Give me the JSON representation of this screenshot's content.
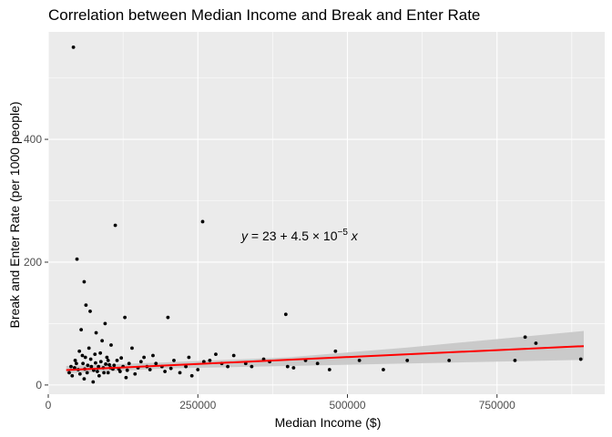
{
  "chart_data": {
    "type": "scatter",
    "title": "Correlation between Median Income and Break and Enter Rate",
    "xlabel": "Median Income ($)",
    "ylabel": "Break and Enter Rate (per 1000 people)",
    "xlim": [
      0,
      930000
    ],
    "ylim": [
      -15,
      575
    ],
    "x_ticks": [
      0,
      250000,
      500000,
      750000
    ],
    "x_tick_labels": [
      "0",
      "250000",
      "500000",
      "750000"
    ],
    "y_ticks": [
      0,
      200,
      400
    ],
    "y_tick_labels": [
      "0",
      "200",
      "400"
    ],
    "grid": true,
    "points": [
      [
        42000,
        550
      ],
      [
        112000,
        260
      ],
      [
        258000,
        266
      ],
      [
        48000,
        205
      ],
      [
        60000,
        168
      ],
      [
        397000,
        115
      ],
      [
        200000,
        110
      ],
      [
        128000,
        110
      ],
      [
        63000,
        130
      ],
      [
        70000,
        120
      ],
      [
        95000,
        100
      ],
      [
        80000,
        85
      ],
      [
        90000,
        72
      ],
      [
        55000,
        90
      ],
      [
        105000,
        65
      ],
      [
        140000,
        60
      ],
      [
        160000,
        45
      ],
      [
        175000,
        48
      ],
      [
        210000,
        40
      ],
      [
        235000,
        45
      ],
      [
        260000,
        38
      ],
      [
        280000,
        50
      ],
      [
        310000,
        48
      ],
      [
        360000,
        42
      ],
      [
        400000,
        30
      ],
      [
        410000,
        28
      ],
      [
        470000,
        25
      ],
      [
        480000,
        55
      ],
      [
        520000,
        40
      ],
      [
        560000,
        25
      ],
      [
        600000,
        40
      ],
      [
        670000,
        40
      ],
      [
        780000,
        40
      ],
      [
        797000,
        78
      ],
      [
        815000,
        68
      ],
      [
        890000,
        42
      ],
      [
        60000,
        10
      ],
      [
        75000,
        5
      ],
      [
        85000,
        15
      ],
      [
        100000,
        20
      ],
      [
        120000,
        22
      ],
      [
        130000,
        12
      ],
      [
        145000,
        18
      ],
      [
        170000,
        25
      ],
      [
        190000,
        30
      ],
      [
        220000,
        20
      ],
      [
        240000,
        15
      ],
      [
        300000,
        30
      ],
      [
        330000,
        35
      ],
      [
        35000,
        20
      ],
      [
        38000,
        30
      ],
      [
        45000,
        40
      ],
      [
        50000,
        25
      ],
      [
        52000,
        55
      ],
      [
        58000,
        35
      ],
      [
        62000,
        45
      ],
      [
        65000,
        20
      ],
      [
        68000,
        60
      ],
      [
        72000,
        30
      ],
      [
        78000,
        50
      ],
      [
        82000,
        22
      ],
      [
        88000,
        38
      ],
      [
        92000,
        28
      ],
      [
        98000,
        45
      ],
      [
        102000,
        33
      ],
      [
        108000,
        26
      ],
      [
        115000,
        40
      ],
      [
        125000,
        30
      ],
      [
        135000,
        35
      ],
      [
        150000,
        28
      ],
      [
        155000,
        38
      ],
      [
        165000,
        30
      ],
      [
        180000,
        35
      ],
      [
        195000,
        22
      ],
      [
        205000,
        27
      ],
      [
        230000,
        30
      ],
      [
        250000,
        25
      ],
      [
        270000,
        40
      ],
      [
        290000,
        35
      ],
      [
        340000,
        30
      ],
      [
        370000,
        38
      ],
      [
        430000,
        40
      ],
      [
        450000,
        35
      ],
      [
        40000,
        15
      ],
      [
        44000,
        28
      ],
      [
        47000,
        35
      ],
      [
        53000,
        18
      ],
      [
        57000,
        48
      ],
      [
        61000,
        26
      ],
      [
        66000,
        32
      ],
      [
        71000,
        42
      ],
      [
        76000,
        24
      ],
      [
        79000,
        36
      ],
      [
        84000,
        30
      ],
      [
        87000,
        52
      ],
      [
        93000,
        20
      ],
      [
        96000,
        34
      ],
      [
        100000,
        40
      ],
      [
        104000,
        28
      ],
      [
        110000,
        32
      ],
      [
        118000,
        26
      ],
      [
        122000,
        44
      ],
      [
        132000,
        24
      ]
    ],
    "regression": {
      "intercept": 23,
      "slope": 4.5e-05,
      "x_range": [
        30000,
        895000
      ],
      "ci_low": [
        [
          30000,
          19
        ],
        [
          200000,
          27
        ],
        [
          400000,
          31
        ],
        [
          600000,
          35
        ],
        [
          895000,
          41
        ]
      ],
      "ci_high": [
        [
          30000,
          31
        ],
        [
          200000,
          37
        ],
        [
          400000,
          45
        ],
        [
          600000,
          61
        ],
        [
          895000,
          88
        ]
      ],
      "color": "#ff0000",
      "band_color": "#c8c8c8"
    },
    "annotation": {
      "x": 420000,
      "y": 243,
      "text_y": "y",
      "text_eq": " = 23 + 4.5 × 10",
      "text_exp": "−5",
      "text_x": " x"
    }
  },
  "colors": {
    "panel": "#ebebeb",
    "grid": "#ffffff",
    "point": "#000000"
  }
}
